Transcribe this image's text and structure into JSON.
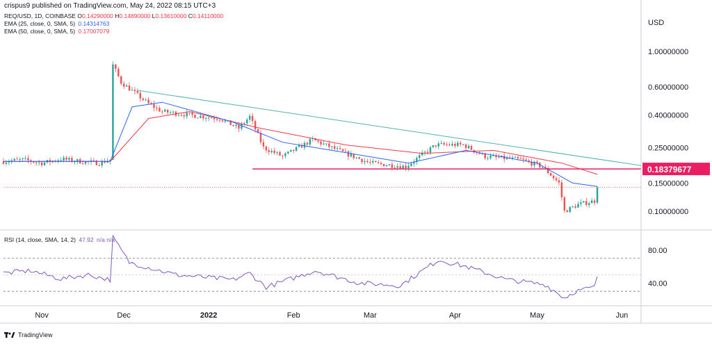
{
  "header": {
    "publisher": "crispus9 published on TradingView.com, May 24, 2022 08:15 UTC+3"
  },
  "legend": {
    "symbol": "REQ/USD, 1D, COINBASE",
    "ohlc": [
      {
        "k": "O",
        "v": "0.14290000"
      },
      {
        "k": "H",
        "v": "0.14890000"
      },
      {
        "k": "L",
        "v": "0.13610000"
      },
      {
        "k": "C",
        "v": "0.14110000"
      }
    ],
    "ema25_label": "EMA (25, close, 0, SMA, 5)",
    "ema25_value": "0.14314763",
    "ema50_label": "EMA (50, close, 0, SMA, 5)",
    "ema50_value": "0.17007079",
    "rsi_label": "RSI (14, close, SMA, 14, 2)",
    "rsi_value": "47.92",
    "rsi_na": "n/a  n/a"
  },
  "footer": {
    "brand": "TradingView"
  },
  "colors": {
    "up": "#26a69a",
    "down": "#ef5350",
    "ema25": "#2962ff",
    "ema50": "#f23645",
    "trend": "#4db6ac",
    "support": "#e91e63",
    "price_tag": "#e91e63",
    "rsi": "#7e57c2",
    "up_label": "#089981",
    "down_label": "#f23645",
    "axis_text": "#131722",
    "grid": "#e0e3eb"
  },
  "chart_data": {
    "type": "candlestick",
    "currency": "USD",
    "price_scale": "log",
    "price_ticks": [
      "1.00000000",
      "0.60000000",
      "0.40000000",
      "0.25000000",
      "0.15000000",
      "0.10000000"
    ],
    "price_tick_values": [
      1.0,
      0.6,
      0.4,
      0.25,
      0.15,
      0.1
    ],
    "current_price_label": "0.18379677",
    "current_price": 0.18379677,
    "last_close": 0.1411,
    "x_labels": [
      "Nov",
      "Dec",
      "2022",
      "Feb",
      "Mar",
      "Apr",
      "May",
      "Jun"
    ],
    "x_dates": [
      "2021-11-01",
      "2021-12-01",
      "2022-01-01",
      "2022-02-01",
      "2022-03-01",
      "2022-04-01",
      "2022-05-01",
      "2022-06-01"
    ],
    "date_range": [
      "2021-10-18",
      "2022-06-08"
    ],
    "price_range": [
      0.077,
      1.75
    ],
    "closes": [
      {
        "date": "2021-10-18",
        "close": 0.205
      },
      {
        "date": "2021-10-25",
        "close": 0.21
      },
      {
        "date": "2021-11-01",
        "close": 0.2
      },
      {
        "date": "2021-11-08",
        "close": 0.212
      },
      {
        "date": "2021-11-15",
        "close": 0.205
      },
      {
        "date": "2021-11-22",
        "close": 0.2
      },
      {
        "date": "2021-11-26",
        "close": 0.21
      },
      {
        "date": "2021-11-27",
        "close": 0.82
      },
      {
        "date": "2021-11-30",
        "close": 0.64
      },
      {
        "date": "2021-12-05",
        "close": 0.55
      },
      {
        "date": "2021-12-10",
        "close": 0.47
      },
      {
        "date": "2021-12-15",
        "close": 0.42
      },
      {
        "date": "2021-12-25",
        "close": 0.4
      },
      {
        "date": "2022-01-05",
        "close": 0.38
      },
      {
        "date": "2022-01-12",
        "close": 0.33
      },
      {
        "date": "2022-01-16",
        "close": 0.39
      },
      {
        "date": "2022-01-21",
        "close": 0.25
      },
      {
        "date": "2022-01-28",
        "close": 0.22
      },
      {
        "date": "2022-02-08",
        "close": 0.28
      },
      {
        "date": "2022-02-20",
        "close": 0.23
      },
      {
        "date": "2022-03-01",
        "close": 0.2
      },
      {
        "date": "2022-03-14",
        "close": 0.19
      },
      {
        "date": "2022-03-25",
        "close": 0.26
      },
      {
        "date": "2022-04-04",
        "close": 0.26
      },
      {
        "date": "2022-04-12",
        "close": 0.22
      },
      {
        "date": "2022-04-25",
        "close": 0.21
      },
      {
        "date": "2022-05-03",
        "close": 0.19
      },
      {
        "date": "2022-05-09",
        "close": 0.15
      },
      {
        "date": "2022-05-11",
        "close": 0.1
      },
      {
        "date": "2022-05-16",
        "close": 0.11
      },
      {
        "date": "2022-05-22",
        "close": 0.116
      },
      {
        "date": "2022-05-23",
        "close": 0.1411
      }
    ],
    "ema25": [
      {
        "date": "2021-10-18",
        "v": 0.205
      },
      {
        "date": "2021-11-26",
        "v": 0.205
      },
      {
        "date": "2021-12-04",
        "v": 0.45
      },
      {
        "date": "2021-12-15",
        "v": 0.48
      },
      {
        "date": "2022-01-10",
        "v": 0.36
      },
      {
        "date": "2022-01-28",
        "v": 0.27
      },
      {
        "date": "2022-02-15",
        "v": 0.24
      },
      {
        "date": "2022-03-15",
        "v": 0.2
      },
      {
        "date": "2022-04-05",
        "v": 0.24
      },
      {
        "date": "2022-05-01",
        "v": 0.2
      },
      {
        "date": "2022-05-14",
        "v": 0.15
      },
      {
        "date": "2022-05-23",
        "v": 0.143
      }
    ],
    "ema50": [
      {
        "date": "2021-10-18",
        "v": 0.205
      },
      {
        "date": "2021-11-26",
        "v": 0.205
      },
      {
        "date": "2021-12-10",
        "v": 0.38
      },
      {
        "date": "2021-12-25",
        "v": 0.42
      },
      {
        "date": "2022-01-20",
        "v": 0.33
      },
      {
        "date": "2022-02-20",
        "v": 0.26
      },
      {
        "date": "2022-03-20",
        "v": 0.23
      },
      {
        "date": "2022-04-15",
        "v": 0.24
      },
      {
        "date": "2022-05-10",
        "v": 0.2
      },
      {
        "date": "2022-05-23",
        "v": 0.17
      }
    ],
    "trendline": {
      "from": {
        "date": "2021-12-06",
        "price": 0.57
      },
      "to": {
        "date": "2022-06-08",
        "price": 0.193
      }
    },
    "support_line": {
      "from_date": "2022-01-17",
      "price": 0.18379677
    },
    "rsi": {
      "label": "RSI",
      "ticks": [
        "80.00",
        "40.00"
      ],
      "tick_values": [
        80,
        40
      ],
      "bands": [
        70,
        30
      ],
      "midline": 50,
      "current": 47.92,
      "range": [
        15,
        100
      ],
      "values": [
        {
          "date": "2021-10-18",
          "v": 52
        },
        {
          "date": "2021-10-28",
          "v": 55
        },
        {
          "date": "2021-11-08",
          "v": 45
        },
        {
          "date": "2021-11-18",
          "v": 50
        },
        {
          "date": "2021-11-26",
          "v": 44
        },
        {
          "date": "2021-11-27",
          "v": 95
        },
        {
          "date": "2021-12-03",
          "v": 65
        },
        {
          "date": "2021-12-20",
          "v": 50
        },
        {
          "date": "2022-01-10",
          "v": 44
        },
        {
          "date": "2022-01-16",
          "v": 52
        },
        {
          "date": "2022-01-22",
          "v": 35
        },
        {
          "date": "2022-02-09",
          "v": 55
        },
        {
          "date": "2022-02-25",
          "v": 40
        },
        {
          "date": "2022-03-12",
          "v": 37
        },
        {
          "date": "2022-03-26",
          "v": 68
        },
        {
          "date": "2022-04-05",
          "v": 60
        },
        {
          "date": "2022-04-20",
          "v": 44
        },
        {
          "date": "2022-05-04",
          "v": 38
        },
        {
          "date": "2022-05-11",
          "v": 22
        },
        {
          "date": "2022-05-15",
          "v": 30
        },
        {
          "date": "2022-05-22",
          "v": 35
        },
        {
          "date": "2022-05-23",
          "v": 47.92
        }
      ]
    }
  }
}
